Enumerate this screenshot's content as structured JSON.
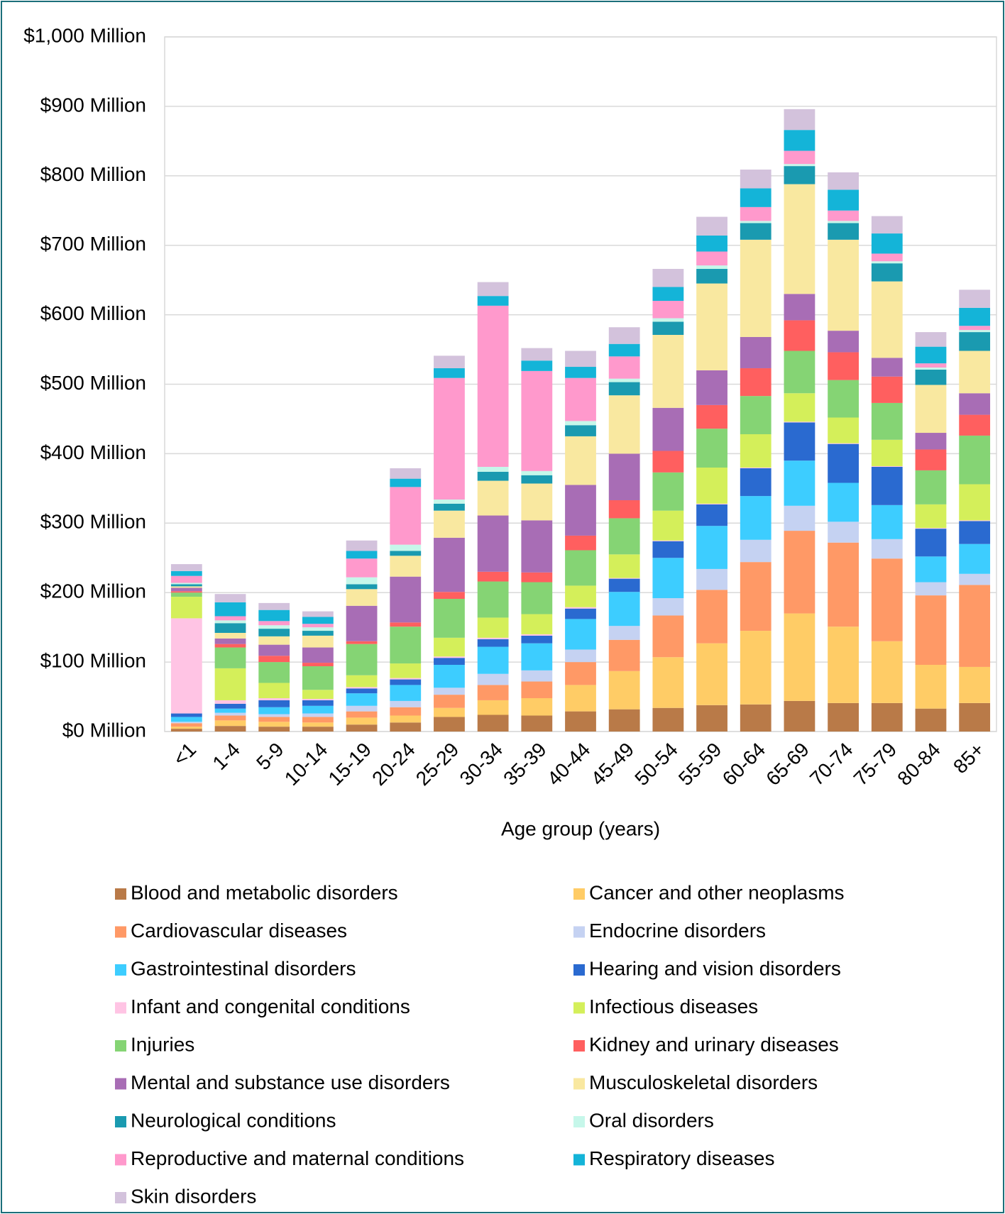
{
  "chart_data": {
    "type": "stacked_bar",
    "xlabel": "Age group (years)",
    "categories": [
      "<1",
      "1-4",
      "5-9",
      "10-14",
      "15-19",
      "20-24",
      "25-29",
      "30-34",
      "35-39",
      "40-44",
      "45-49",
      "50-54",
      "55-59",
      "60-64",
      "65-69",
      "70-74",
      "75-79",
      "80-84",
      "85+"
    ],
    "ylim": [
      0,
      1000
    ],
    "yticks": [
      {
        "value": 0,
        "label": "$0 Million"
      },
      {
        "value": 100,
        "label": "$100 Million"
      },
      {
        "value": 200,
        "label": "$200 Million"
      },
      {
        "value": 300,
        "label": "$300 Million"
      },
      {
        "value": 400,
        "label": "$400 Million"
      },
      {
        "value": 500,
        "label": "$500 Million"
      },
      {
        "value": 600,
        "label": "$600 Million"
      },
      {
        "value": 700,
        "label": "$700 Million"
      },
      {
        "value": 800,
        "label": "$800 Million"
      },
      {
        "value": 900,
        "label": "$900 Million"
      },
      {
        "value": 1000,
        "label": "$1,000 Million"
      }
    ],
    "grid": true,
    "legend": "bottom",
    "series": [
      {
        "name": "Blood and metabolic disorders",
        "color": "#b97a48",
        "values": [
          4,
          8,
          7,
          7,
          10,
          13,
          21,
          24,
          23,
          29,
          32,
          34,
          38,
          39,
          44,
          41,
          41,
          33,
          41
        ]
      },
      {
        "name": "Cancer and other neoplasms",
        "color": "#ffcc66",
        "values": [
          3,
          8,
          7,
          6,
          10,
          10,
          13,
          21,
          25,
          38,
          55,
          73,
          89,
          106,
          126,
          110,
          89,
          63,
          52
        ]
      },
      {
        "name": "Cardiovascular diseases",
        "color": "#ff9966",
        "values": [
          5,
          7,
          7,
          8,
          9,
          12,
          19,
          22,
          24,
          33,
          45,
          60,
          77,
          99,
          119,
          121,
          119,
          100,
          118
        ]
      },
      {
        "name": "Endocrine disorders",
        "color": "#c5d2f2",
        "values": [
          2,
          4,
          4,
          5,
          8,
          9,
          10,
          16,
          16,
          18,
          20,
          25,
          30,
          32,
          36,
          30,
          28,
          19,
          16
        ]
      },
      {
        "name": "Gastrointestinal disorders",
        "color": "#3dcdff",
        "values": [
          7,
          6,
          10,
          11,
          18,
          23,
          33,
          39,
          39,
          44,
          49,
          58,
          62,
          63,
          65,
          56,
          49,
          37,
          43
        ]
      },
      {
        "name": "Hearing and vision disorders",
        "color": "#2a6ad0",
        "values": [
          5,
          7,
          10,
          8,
          7,
          8,
          10,
          11,
          11,
          15,
          19,
          24,
          31,
          40,
          55,
          56,
          55,
          40,
          33
        ]
      },
      {
        "name": "Infant and congenital conditions",
        "color": "#ffc4e4",
        "values": [
          137,
          5,
          3,
          2,
          2,
          2,
          2,
          2,
          2,
          2,
          1,
          1,
          1,
          1,
          1,
          1,
          1,
          1,
          1
        ]
      },
      {
        "name": "Infectious diseases",
        "color": "#d4ef5a",
        "values": [
          31,
          46,
          22,
          13,
          17,
          21,
          27,
          29,
          29,
          31,
          34,
          43,
          52,
          48,
          41,
          37,
          38,
          34,
          52
        ]
      },
      {
        "name": "Injuries",
        "color": "#85d474",
        "values": [
          6,
          30,
          30,
          34,
          45,
          53,
          56,
          52,
          46,
          51,
          52,
          55,
          56,
          55,
          61,
          54,
          53,
          49,
          70
        ]
      },
      {
        "name": "Kidney and urinary diseases",
        "color": "#ff5f5f",
        "values": [
          2,
          5,
          9,
          5,
          4,
          6,
          10,
          14,
          14,
          21,
          26,
          31,
          34,
          40,
          44,
          40,
          38,
          30,
          30
        ]
      },
      {
        "name": "Mental and substance use disorders",
        "color": "#a86db5",
        "values": [
          5,
          8,
          16,
          22,
          51,
          66,
          78,
          81,
          75,
          73,
          67,
          62,
          50,
          45,
          38,
          31,
          27,
          24,
          31
        ]
      },
      {
        "name": "Musculoskeletal disorders",
        "color": "#f9e8a0",
        "values": [
          2,
          8,
          12,
          17,
          24,
          30,
          39,
          50,
          53,
          70,
          84,
          105,
          125,
          140,
          158,
          131,
          110,
          69,
          61
        ]
      },
      {
        "name": "Neurological conditions",
        "color": "#1a9ab0",
        "values": [
          3,
          14,
          11,
          7,
          7,
          7,
          10,
          13,
          12,
          16,
          19,
          19,
          21,
          24,
          26,
          24,
          26,
          22,
          27
        ]
      },
      {
        "name": "Oral disorders",
        "color": "#c6f7ea",
        "values": [
          2,
          4,
          5,
          5,
          10,
          9,
          6,
          7,
          6,
          6,
          5,
          5,
          5,
          3,
          3,
          3,
          3,
          3,
          3
        ]
      },
      {
        "name": "Reproductive and maternal conditions",
        "color": "#ff99cc",
        "values": [
          10,
          6,
          6,
          5,
          27,
          83,
          175,
          232,
          144,
          62,
          32,
          25,
          20,
          20,
          19,
          15,
          11,
          6,
          6
        ]
      },
      {
        "name": "Respiratory diseases",
        "color": "#14b4d8",
        "values": [
          7,
          20,
          16,
          10,
          11,
          12,
          14,
          14,
          15,
          16,
          18,
          20,
          23,
          27,
          30,
          30,
          29,
          24,
          26
        ]
      },
      {
        "name": "Skin disorders",
        "color": "#d3c2dc",
        "values": [
          10,
          12,
          10,
          8,
          15,
          15,
          18,
          20,
          18,
          23,
          24,
          26,
          27,
          27,
          30,
          25,
          25,
          21,
          26
        ]
      }
    ]
  }
}
